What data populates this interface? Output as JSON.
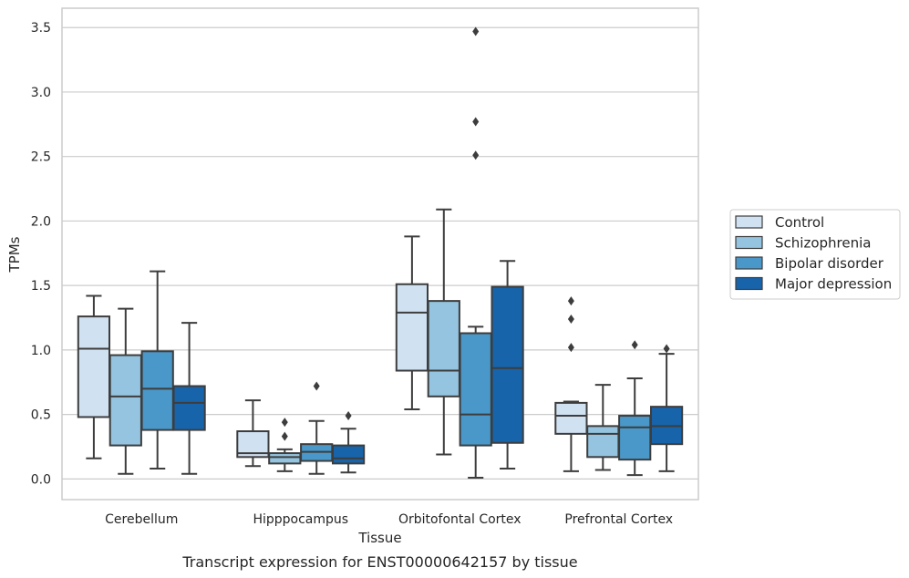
{
  "caption": "Transcript expression for ENST00000642157 by tissue",
  "colors": {
    "Control": "#d0e1f2",
    "Schizophrenia": "#94c4df",
    "Bipolar disorder": "#4a98c9",
    "Major depression": "#1764ab",
    "grid": "#cccccc",
    "frame": "#cccccc",
    "line": "#3d3d3d"
  },
  "chart_data": {
    "type": "box",
    "xlabel": "Tissue",
    "ylabel": "TPMs",
    "ylim": [
      -0.16,
      3.65
    ],
    "yticks": [
      "0.0",
      "0.5",
      "1.0",
      "1.5",
      "2.0",
      "2.5",
      "3.0",
      "3.5"
    ],
    "grid": "horizontal",
    "legend_position": "right",
    "categories": [
      "Cerebellum",
      "Hipppocampus",
      "Orbitofontal Cortex",
      "Prefrontal Cortex"
    ],
    "series": [
      {
        "name": "Control",
        "boxes": [
          {
            "whislo": 0.16,
            "q1": 0.48,
            "med": 1.01,
            "q3": 1.26,
            "whishi": 1.42,
            "fliers": []
          },
          {
            "whislo": 0.1,
            "q1": 0.17,
            "med": 0.2,
            "q3": 0.37,
            "whishi": 0.61,
            "fliers": []
          },
          {
            "whislo": 0.54,
            "q1": 0.84,
            "med": 1.29,
            "q3": 1.51,
            "whishi": 1.88,
            "fliers": []
          },
          {
            "whislo": 0.06,
            "q1": 0.35,
            "med": 0.49,
            "q3": 0.59,
            "whishi": 0.6,
            "fliers": [
              1.02,
              1.24,
              1.38
            ]
          }
        ]
      },
      {
        "name": "Schizophrenia",
        "boxes": [
          {
            "whislo": 0.04,
            "q1": 0.26,
            "med": 0.64,
            "q3": 0.96,
            "whishi": 1.32,
            "fliers": []
          },
          {
            "whislo": 0.06,
            "q1": 0.12,
            "med": 0.17,
            "q3": 0.2,
            "whishi": 0.23,
            "fliers": [
              0.33,
              0.44
            ]
          },
          {
            "whislo": 0.19,
            "q1": 0.64,
            "med": 0.84,
            "q3": 1.38,
            "whishi": 2.09,
            "fliers": []
          },
          {
            "whislo": 0.07,
            "q1": 0.17,
            "med": 0.35,
            "q3": 0.41,
            "whishi": 0.73,
            "fliers": []
          }
        ]
      },
      {
        "name": "Bipolar disorder",
        "boxes": [
          {
            "whislo": 0.08,
            "q1": 0.38,
            "med": 0.7,
            "q3": 0.99,
            "whishi": 1.61,
            "fliers": []
          },
          {
            "whislo": 0.04,
            "q1": 0.14,
            "med": 0.21,
            "q3": 0.27,
            "whishi": 0.45,
            "fliers": [
              0.72
            ]
          },
          {
            "whislo": 0.01,
            "q1": 0.26,
            "med": 0.5,
            "q3": 1.13,
            "whishi": 1.18,
            "fliers": [
              2.51,
              2.77,
              3.47
            ]
          },
          {
            "whislo": 0.03,
            "q1": 0.15,
            "med": 0.4,
            "q3": 0.49,
            "whishi": 0.78,
            "fliers": [
              1.04
            ]
          }
        ]
      },
      {
        "name": "Major depression",
        "boxes": [
          {
            "whislo": 0.04,
            "q1": 0.38,
            "med": 0.59,
            "q3": 0.72,
            "whishi": 1.21,
            "fliers": []
          },
          {
            "whislo": 0.05,
            "q1": 0.12,
            "med": 0.16,
            "q3": 0.26,
            "whishi": 0.39,
            "fliers": [
              0.49
            ]
          },
          {
            "whislo": 0.08,
            "q1": 0.28,
            "med": 0.86,
            "q3": 1.49,
            "whishi": 1.69,
            "fliers": []
          },
          {
            "whislo": 0.06,
            "q1": 0.27,
            "med": 0.41,
            "q3": 0.56,
            "whishi": 0.97,
            "fliers": [
              1.01
            ]
          }
        ]
      }
    ]
  }
}
